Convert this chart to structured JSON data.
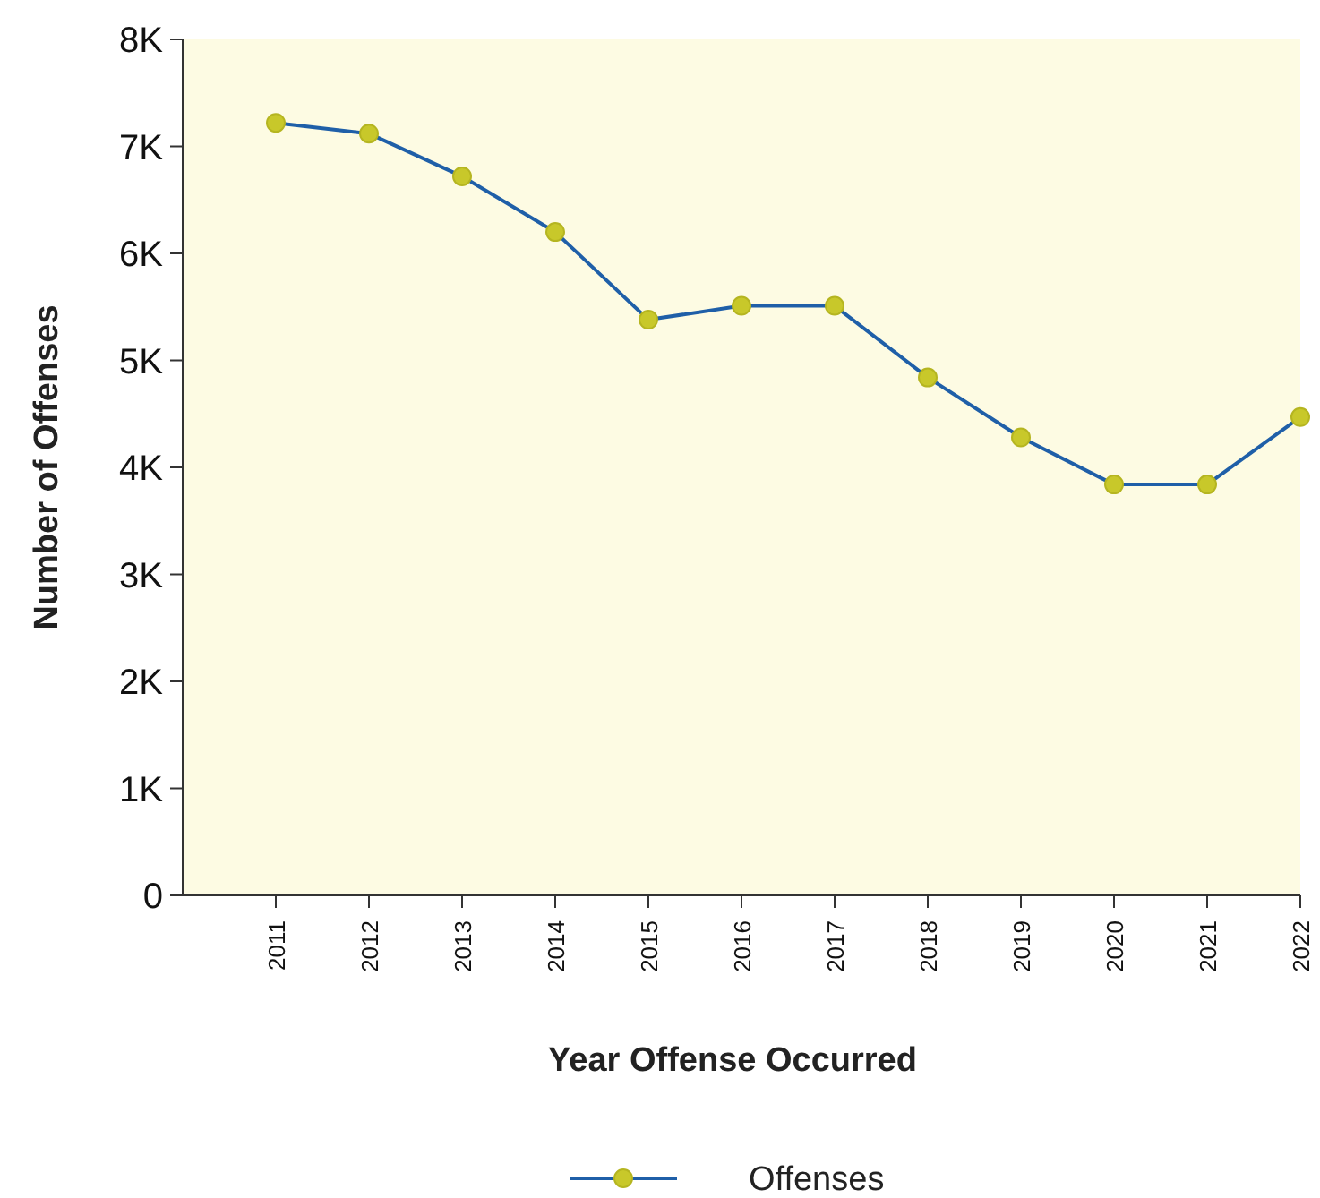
{
  "chart_data": {
    "type": "line",
    "xlabel": "Year Offense Occurred",
    "ylabel": "Number of Offenses",
    "categories": [
      "2011",
      "2012",
      "2013",
      "2014",
      "2015",
      "2016",
      "2017",
      "2018",
      "2019",
      "2020",
      "2021",
      "2022"
    ],
    "series": [
      {
        "name": "Offenses",
        "color": "#1f5fa8",
        "values": [
          7220,
          7120,
          6720,
          6200,
          5380,
          5510,
          5510,
          4840,
          4280,
          3840,
          3840,
          4470
        ]
      }
    ],
    "ylim": [
      0,
      8000
    ],
    "yticks": [
      {
        "value": 0,
        "label": "0"
      },
      {
        "value": 1000,
        "label": "1K"
      },
      {
        "value": 2000,
        "label": "2K"
      },
      {
        "value": 3000,
        "label": "3K"
      },
      {
        "value": 4000,
        "label": "4K"
      },
      {
        "value": 5000,
        "label": "5K"
      },
      {
        "value": 6000,
        "label": "6K"
      },
      {
        "value": 7000,
        "label": "7K"
      },
      {
        "value": 8000,
        "label": "8K"
      }
    ],
    "marker": "circle",
    "line_style": "solid",
    "legend": "bottom",
    "grid": false
  }
}
